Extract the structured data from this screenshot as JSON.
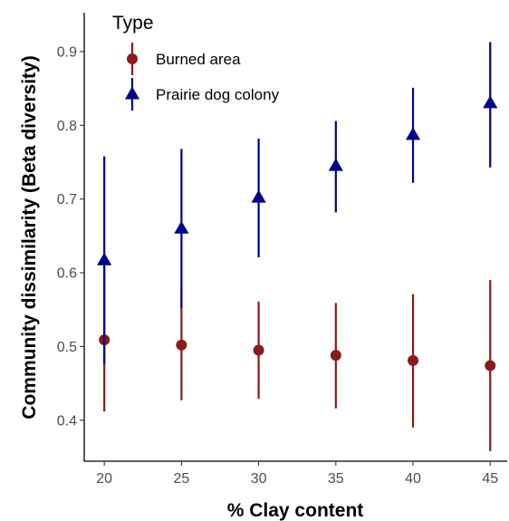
{
  "chart_data": {
    "type": "scatter",
    "xlabel": "% Clay content",
    "ylabel": "Community dissimilarity (Beta diversity)",
    "x": [
      20,
      25,
      30,
      35,
      40,
      45
    ],
    "xlim": [
      18.7,
      46.1
    ],
    "ylim": [
      0.3444,
      0.9528
    ],
    "xticks": [
      20,
      25,
      30,
      35,
      40,
      45
    ],
    "yticks": [
      0.4,
      0.5,
      0.6,
      0.7,
      0.8,
      0.9
    ],
    "grid": false,
    "legend": {
      "title": "Type",
      "position": "top-left-inside"
    },
    "series": [
      {
        "name": "Burned area",
        "marker": "circle",
        "color": "#8b1a1a",
        "values": [
          0.509,
          0.502,
          0.495,
          0.488,
          0.481,
          0.474
        ],
        "lower": [
          0.412,
          0.427,
          0.429,
          0.416,
          0.39,
          0.358
        ],
        "upper": [
          0.608,
          0.577,
          0.561,
          0.559,
          0.571,
          0.59
        ]
      },
      {
        "name": "Prairie dog colony",
        "marker": "triangle",
        "color": "#00008b",
        "values": [
          0.617,
          0.66,
          0.702,
          0.745,
          0.787,
          0.83
        ],
        "lower": [
          0.476,
          0.552,
          0.621,
          0.682,
          0.722,
          0.743
        ],
        "upper": [
          0.758,
          0.768,
          0.782,
          0.806,
          0.851,
          0.913
        ]
      }
    ]
  }
}
